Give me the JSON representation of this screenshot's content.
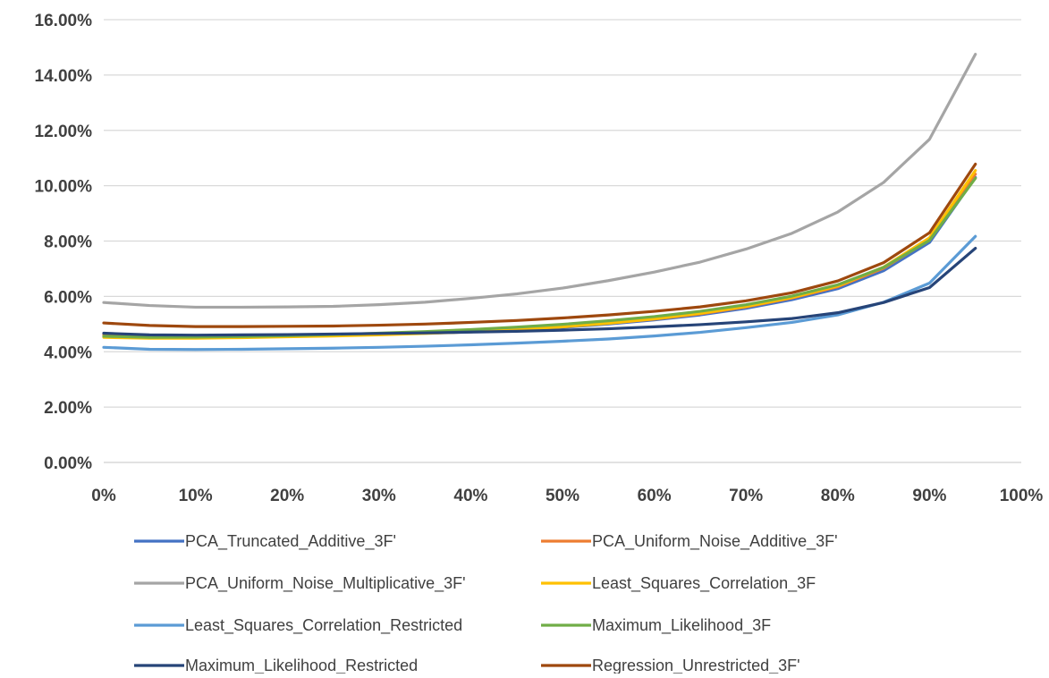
{
  "chart_data": {
    "type": "line",
    "title": "",
    "xlabel": "",
    "ylabel": "",
    "x": [
      0,
      5,
      10,
      15,
      20,
      25,
      30,
      35,
      40,
      45,
      50,
      55,
      60,
      65,
      70,
      75,
      80,
      85,
      90,
      95
    ],
    "xlim": [
      0,
      100
    ],
    "ylim": [
      0,
      16
    ],
    "x_ticks": [
      0,
      10,
      20,
      30,
      40,
      50,
      60,
      70,
      80,
      90,
      100
    ],
    "x_tick_labels": [
      "0%",
      "10%",
      "20%",
      "30%",
      "40%",
      "50%",
      "60%",
      "70%",
      "80%",
      "90%",
      "100%"
    ],
    "y_ticks": [
      0,
      2,
      4,
      6,
      8,
      10,
      12,
      14,
      16
    ],
    "y_tick_labels": [
      "0.00%",
      "2.00%",
      "4.00%",
      "6.00%",
      "8.00%",
      "10.00%",
      "12.00%",
      "14.00%",
      "16.00%"
    ],
    "grid": "horizontal",
    "legend_position": "bottom",
    "series": [
      {
        "name": "PCA_Truncated_Additive_3F'",
        "color": "#4472C4",
        "values": [
          4.62,
          4.55,
          4.55,
          4.56,
          4.58,
          4.6,
          4.63,
          4.67,
          4.72,
          4.79,
          4.88,
          5.0,
          5.15,
          5.33,
          5.57,
          5.88,
          6.28,
          6.93,
          7.95,
          10.3
        ]
      },
      {
        "name": "PCA_Uniform_Noise_Additive_3F'",
        "color": "#ED7D31",
        "values": [
          4.62,
          4.56,
          4.56,
          4.57,
          4.59,
          4.61,
          4.64,
          4.68,
          4.74,
          4.81,
          4.9,
          5.03,
          5.18,
          5.37,
          5.62,
          5.94,
          6.35,
          7.02,
          8.05,
          10.42
        ]
      },
      {
        "name": "PCA_Uniform_Noise_Multiplicative_3F'",
        "color": "#A5A5A5",
        "values": [
          5.78,
          5.67,
          5.61,
          5.61,
          5.62,
          5.64,
          5.7,
          5.79,
          5.93,
          6.09,
          6.3,
          6.57,
          6.88,
          7.24,
          7.71,
          8.28,
          9.05,
          10.12,
          11.68,
          14.75
        ]
      },
      {
        "name": "Least_Squares_Correlation_3F",
        "color": "#FFC000",
        "values": [
          4.52,
          4.49,
          4.49,
          4.51,
          4.54,
          4.57,
          4.61,
          4.66,
          4.72,
          4.8,
          4.9,
          5.03,
          5.19,
          5.39,
          5.64,
          5.96,
          6.38,
          7.06,
          8.12,
          10.55
        ]
      },
      {
        "name": "Least_Squares_Correlation_Restricted",
        "color": "#5B9BD5",
        "values": [
          4.16,
          4.09,
          4.08,
          4.09,
          4.11,
          4.13,
          4.16,
          4.2,
          4.25,
          4.31,
          4.38,
          4.46,
          4.57,
          4.7,
          4.87,
          5.06,
          5.33,
          5.79,
          6.48,
          8.17
        ]
      },
      {
        "name": "Maximum_Likelihood_3F",
        "color": "#70AD47",
        "values": [
          4.56,
          4.52,
          4.53,
          4.55,
          4.58,
          4.62,
          4.67,
          4.73,
          4.8,
          4.89,
          4.99,
          5.12,
          5.27,
          5.46,
          5.7,
          6.01,
          6.42,
          7.05,
          8.03,
          10.27
        ]
      },
      {
        "name": "Maximum_Likelihood_Restricted",
        "color": "#264478",
        "values": [
          4.67,
          4.61,
          4.6,
          4.61,
          4.62,
          4.64,
          4.66,
          4.68,
          4.71,
          4.74,
          4.78,
          4.83,
          4.9,
          4.98,
          5.08,
          5.2,
          5.41,
          5.78,
          6.32,
          7.74
        ]
      },
      {
        "name": "Regression_Unrestricted_3F'",
        "color": "#9E480E",
        "values": [
          5.04,
          4.95,
          4.91,
          4.91,
          4.92,
          4.93,
          4.96,
          5.0,
          5.06,
          5.13,
          5.22,
          5.33,
          5.46,
          5.62,
          5.84,
          6.13,
          6.56,
          7.22,
          8.3,
          10.78
        ]
      }
    ]
  }
}
